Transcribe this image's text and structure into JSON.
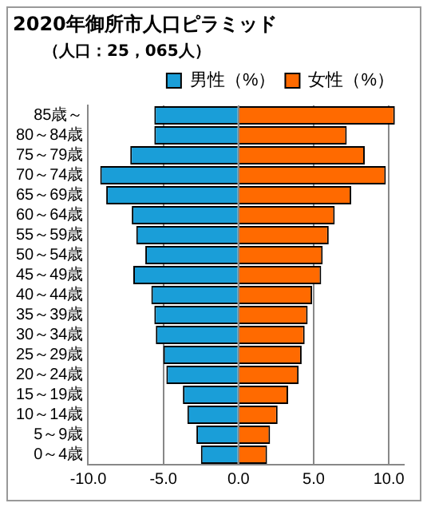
{
  "chart_data": {
    "type": "bar",
    "orientation": "horizontal",
    "stacked": true,
    "title": "2020年御所市人口ピラミッド",
    "subtitle": "（人口：25，065人）",
    "categories": [
      "85歳～",
      "80～84歳",
      "75～79歳",
      "70～74歳",
      "65～69歳",
      "60～64歳",
      "55～59歳",
      "50～54歳",
      "45～49歳",
      "40～44歳",
      "35～39歳",
      "30～34歳",
      "25～29歳",
      "20～24歳",
      "15～19歳",
      "10～14歳",
      "5～9歳",
      "0～4歳"
    ],
    "series": [
      {
        "name": "男性（%）",
        "color": "#1a9ed8",
        "values": [
          -5.6,
          -5.6,
          -7.2,
          -9.2,
          -8.8,
          -7.1,
          -6.8,
          -6.2,
          -7.0,
          -5.8,
          -5.6,
          -5.5,
          -5.0,
          -4.8,
          -3.7,
          -3.4,
          -2.8,
          -2.5
        ]
      },
      {
        "name": "女性（%）",
        "color": "#ff6a00",
        "values": [
          10.4,
          7.2,
          8.4,
          9.8,
          7.5,
          6.4,
          6.0,
          5.6,
          5.5,
          4.9,
          4.6,
          4.4,
          4.2,
          4.0,
          3.3,
          2.6,
          2.1,
          1.9
        ]
      }
    ],
    "xlim": [
      -10,
      11
    ],
    "xticks": [
      {
        "value": -10,
        "label": "-10.0"
      },
      {
        "value": -5,
        "label": "-5.0"
      },
      {
        "value": 0,
        "label": "0.0"
      },
      {
        "value": 5,
        "label": "5.0"
      },
      {
        "value": 10,
        "label": "10.0"
      }
    ],
    "grid": "x",
    "legend": "top right"
  }
}
